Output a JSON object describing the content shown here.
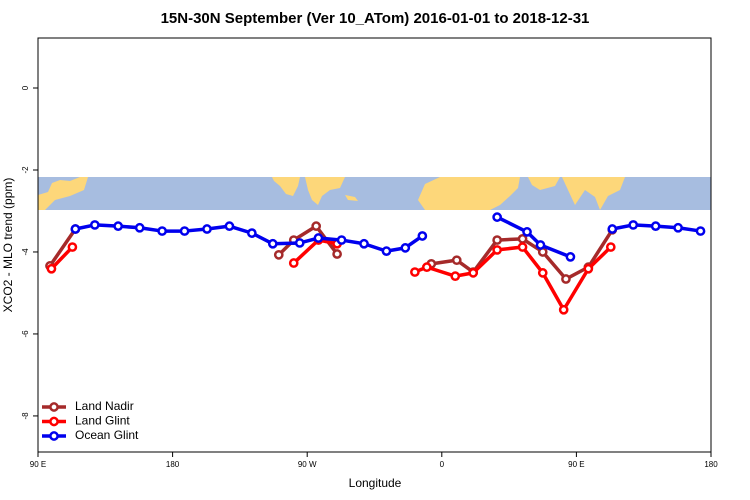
{
  "chart_data": {
    "type": "line",
    "title": "15N-30N September (Ver 10_ATom)   2016-01-01 to 2018-12-31",
    "x_label": "Longitude",
    "y_label": "XCO2 - MLO trend (ppm)",
    "xlim": [
      90,
      540
    ],
    "ylim": [
      -8.88,
      1.22
    ],
    "xticks": [
      {
        "value": 90,
        "label": "90 E"
      },
      180,
      {
        "value": 270,
        "label": "90 W"
      },
      {
        "value": 360,
        "label": "0"
      },
      {
        "value": 450,
        "label": "90 E"
      },
      {
        "value": 540,
        "label": "180"
      }
    ],
    "yticks": [
      0,
      -2,
      -4,
      -6,
      -8
    ],
    "legend": "bottomleft",
    "series": [
      {
        "name": "Land Nadir",
        "color": "#a52a2a",
        "x": [
          98,
          115,
          null,
          251,
          261,
          276,
          290,
          null,
          353,
          370,
          381,
          397,
          414,
          427.5,
          443,
          458,
          474
        ],
        "values": [
          -4.34,
          -3.44,
          null,
          -4.07,
          -3.71,
          -3.37,
          -4.05,
          null,
          -4.29,
          -4.2,
          -4.49,
          -3.71,
          -3.68,
          -4.0,
          -4.66,
          -4.37,
          -3.46
        ]
      },
      {
        "name": "Land Glint",
        "color": "#ff0000",
        "x": [
          99,
          113,
          null,
          261,
          277.5,
          290,
          null,
          342,
          350,
          369,
          381,
          397,
          414,
          427.5,
          441.5,
          458,
          473
        ],
        "values": [
          -4.41,
          -3.88,
          null,
          -4.27,
          -3.71,
          -3.8,
          null,
          -4.49,
          -4.37,
          -4.59,
          -4.51,
          -3.95,
          -3.88,
          -4.51,
          -5.41,
          -4.41,
          -3.88
        ]
      },
      {
        "name": "Ocean Glint",
        "color": "#0000ee",
        "x": [
          115,
          128,
          143.6,
          158,
          173,
          188,
          203,
          218,
          233,
          247,
          265,
          277.5,
          293,
          308,
          323,
          335.6,
          347,
          null,
          397,
          417,
          426,
          446,
          null,
          474,
          488,
          503,
          518,
          533
        ],
        "values": [
          -3.44,
          -3.34,
          -3.37,
          -3.41,
          -3.49,
          -3.49,
          -3.44,
          -3.37,
          -3.54,
          -3.8,
          -3.78,
          -3.66,
          -3.71,
          -3.8,
          -3.98,
          -3.9,
          -3.61,
          null,
          -3.15,
          -3.51,
          -3.83,
          -4.12,
          null,
          -3.44,
          -3.34,
          -3.37,
          -3.41,
          -3.49
        ]
      }
    ]
  }
}
